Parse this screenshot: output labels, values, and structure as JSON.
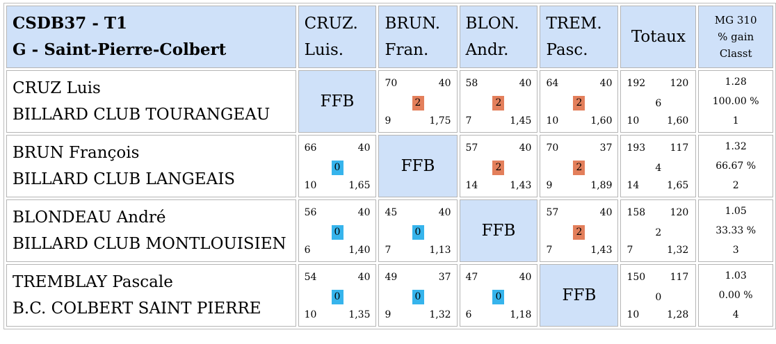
{
  "header": {
    "title_line1": "CSDB37 - T1",
    "title_line2": "G - Saint-Pierre-Colbert",
    "players": [
      {
        "l1": "CRUZ.",
        "l2": "Luis."
      },
      {
        "l1": "BRUN.",
        "l2": "Fran."
      },
      {
        "l1": "BLON.",
        "l2": "Andr."
      },
      {
        "l1": "TREM.",
        "l2": "Pasc."
      }
    ],
    "totaux": "Totaux",
    "mg1": "MG 310",
    "mg2": "% gain",
    "mg3": "Classt"
  },
  "ffb_label": "FFB",
  "rows": [
    {
      "name": "CRUZ Luis",
      "club": "BILLARD CLUB TOURANGEAU",
      "cells": [
        null,
        {
          "tl": "70",
          "tr": "40",
          "pts": "2",
          "result": "win",
          "bl": "9",
          "br": "1,75"
        },
        {
          "tl": "58",
          "tr": "40",
          "pts": "2",
          "result": "win",
          "bl": "7",
          "br": "1,45"
        },
        {
          "tl": "64",
          "tr": "40",
          "pts": "2",
          "result": "win",
          "bl": "10",
          "br": "1,60"
        }
      ],
      "totals": {
        "tl": "192",
        "tr": "120",
        "mid": "6",
        "bl": "10",
        "br": "1,60"
      },
      "mg": "1.28",
      "gain": "100.00 %",
      "rank": "1"
    },
    {
      "name": "BRUN François",
      "club": "BILLARD CLUB LANGEAIS",
      "cells": [
        {
          "tl": "66",
          "tr": "40",
          "pts": "0",
          "result": "loss",
          "bl": "10",
          "br": "1,65"
        },
        null,
        {
          "tl": "57",
          "tr": "40",
          "pts": "2",
          "result": "win",
          "bl": "14",
          "br": "1,43"
        },
        {
          "tl": "70",
          "tr": "37",
          "pts": "2",
          "result": "win",
          "bl": "9",
          "br": "1,89"
        }
      ],
      "totals": {
        "tl": "193",
        "tr": "117",
        "mid": "4",
        "bl": "14",
        "br": "1,65"
      },
      "mg": "1.32",
      "gain": "66.67 %",
      "rank": "2"
    },
    {
      "name": "BLONDEAU André",
      "club": "BILLARD CLUB MONTLOUISIEN",
      "cells": [
        {
          "tl": "56",
          "tr": "40",
          "pts": "0",
          "result": "loss",
          "bl": "6",
          "br": "1,40"
        },
        {
          "tl": "45",
          "tr": "40",
          "pts": "0",
          "result": "loss",
          "bl": "7",
          "br": "1,13"
        },
        null,
        {
          "tl": "57",
          "tr": "40",
          "pts": "2",
          "result": "win",
          "bl": "7",
          "br": "1,43"
        }
      ],
      "totals": {
        "tl": "158",
        "tr": "120",
        "mid": "2",
        "bl": "7",
        "br": "1,32"
      },
      "mg": "1.05",
      "gain": "33.33 %",
      "rank": "3"
    },
    {
      "name": "TREMBLAY Pascale",
      "club": "B.C. COLBERT SAINT PIERRE",
      "cells": [
        {
          "tl": "54",
          "tr": "40",
          "pts": "0",
          "result": "loss",
          "bl": "10",
          "br": "1,35"
        },
        {
          "tl": "49",
          "tr": "37",
          "pts": "0",
          "result": "loss",
          "bl": "9",
          "br": "1,32"
        },
        {
          "tl": "47",
          "tr": "40",
          "pts": "0",
          "result": "loss",
          "bl": "6",
          "br": "1,18"
        },
        null
      ],
      "totals": {
        "tl": "150",
        "tr": "117",
        "mid": "0",
        "bl": "10",
        "br": "1,28"
      },
      "mg": "1.03",
      "gain": "0.00 %",
      "rank": "4"
    }
  ],
  "colors": {
    "header_bg": "#cfe1f9",
    "win_badge": "#e37f5b",
    "loss_badge": "#36b4ec"
  }
}
